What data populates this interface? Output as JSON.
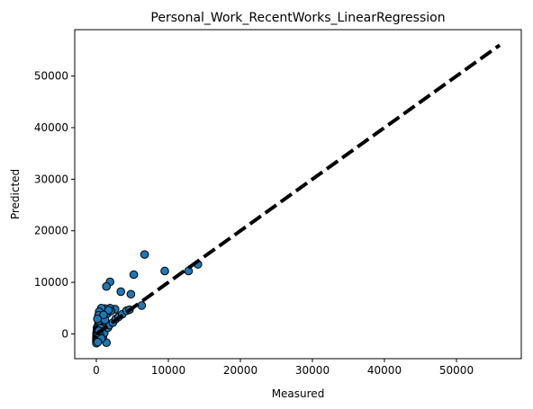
{
  "chart_data": {
    "type": "scatter",
    "title": "Personal_Work_RecentWorks_LinearRegression",
    "xlabel": "Measured",
    "ylabel": "Predicted",
    "xlim": [
      -3000,
      59000
    ],
    "ylim": [
      -4800,
      59000
    ],
    "xticks": [
      0,
      10000,
      20000,
      30000,
      40000,
      50000
    ],
    "yticks": [
      0,
      10000,
      20000,
      30000,
      40000,
      50000
    ],
    "xtick_labels": [
      "0",
      "10000",
      "20000",
      "30000",
      "40000",
      "50000"
    ],
    "ytick_labels": [
      "0",
      "10000",
      "20000",
      "30000",
      "40000",
      "50000"
    ],
    "grid": false,
    "reference_line": {
      "style": "dashed",
      "color": "#000000",
      "from": [
        0,
        0
      ],
      "to": [
        56000,
        56000
      ]
    },
    "marker_color": "#1f77b4",
    "marker_edge": "#000000",
    "points": [
      [
        6700,
        15400
      ],
      [
        1900,
        10100
      ],
      [
        1400,
        9200
      ],
      [
        5200,
        11500
      ],
      [
        9500,
        12200
      ],
      [
        12800,
        12200
      ],
      [
        14100,
        13500
      ],
      [
        3400,
        8200
      ],
      [
        4800,
        7700
      ],
      [
        6300,
        5500
      ],
      [
        2600,
        4800
      ],
      [
        1900,
        5000
      ],
      [
        1200,
        4900
      ],
      [
        700,
        5000
      ],
      [
        400,
        4300
      ],
      [
        300,
        3600
      ],
      [
        600,
        3000
      ],
      [
        800,
        2500
      ],
      [
        500,
        2000
      ],
      [
        300,
        1800
      ],
      [
        200,
        1500
      ],
      [
        100,
        1200
      ],
      [
        150,
        900
      ],
      [
        100,
        700
      ],
      [
        80,
        500
      ],
      [
        60,
        300
      ],
      [
        50,
        100
      ],
      [
        40,
        -100
      ],
      [
        30,
        -300
      ],
      [
        25,
        -500
      ],
      [
        20,
        -700
      ],
      [
        20,
        -900
      ],
      [
        15,
        -1100
      ],
      [
        15,
        -1300
      ],
      [
        10,
        -1500
      ],
      [
        10,
        -1800
      ],
      [
        1400,
        -1700
      ],
      [
        900,
        -600
      ],
      [
        1100,
        200
      ],
      [
        1600,
        1200
      ],
      [
        1800,
        1700
      ],
      [
        2300,
        2200
      ],
      [
        2700,
        2900
      ],
      [
        3100,
        3300
      ],
      [
        3600,
        3800
      ],
      [
        4200,
        4500
      ],
      [
        4600,
        4700
      ],
      [
        1500,
        3900
      ],
      [
        900,
        3200
      ],
      [
        300,
        2500
      ],
      [
        600,
        1100
      ],
      [
        250,
        100
      ],
      [
        500,
        -200
      ],
      [
        1200,
        2700
      ],
      [
        2000,
        4400
      ],
      [
        1700,
        4600
      ],
      [
        1000,
        3700
      ],
      [
        150,
        2900
      ],
      [
        350,
        600
      ],
      [
        700,
        -900
      ],
      [
        200,
        -1600
      ]
    ]
  }
}
